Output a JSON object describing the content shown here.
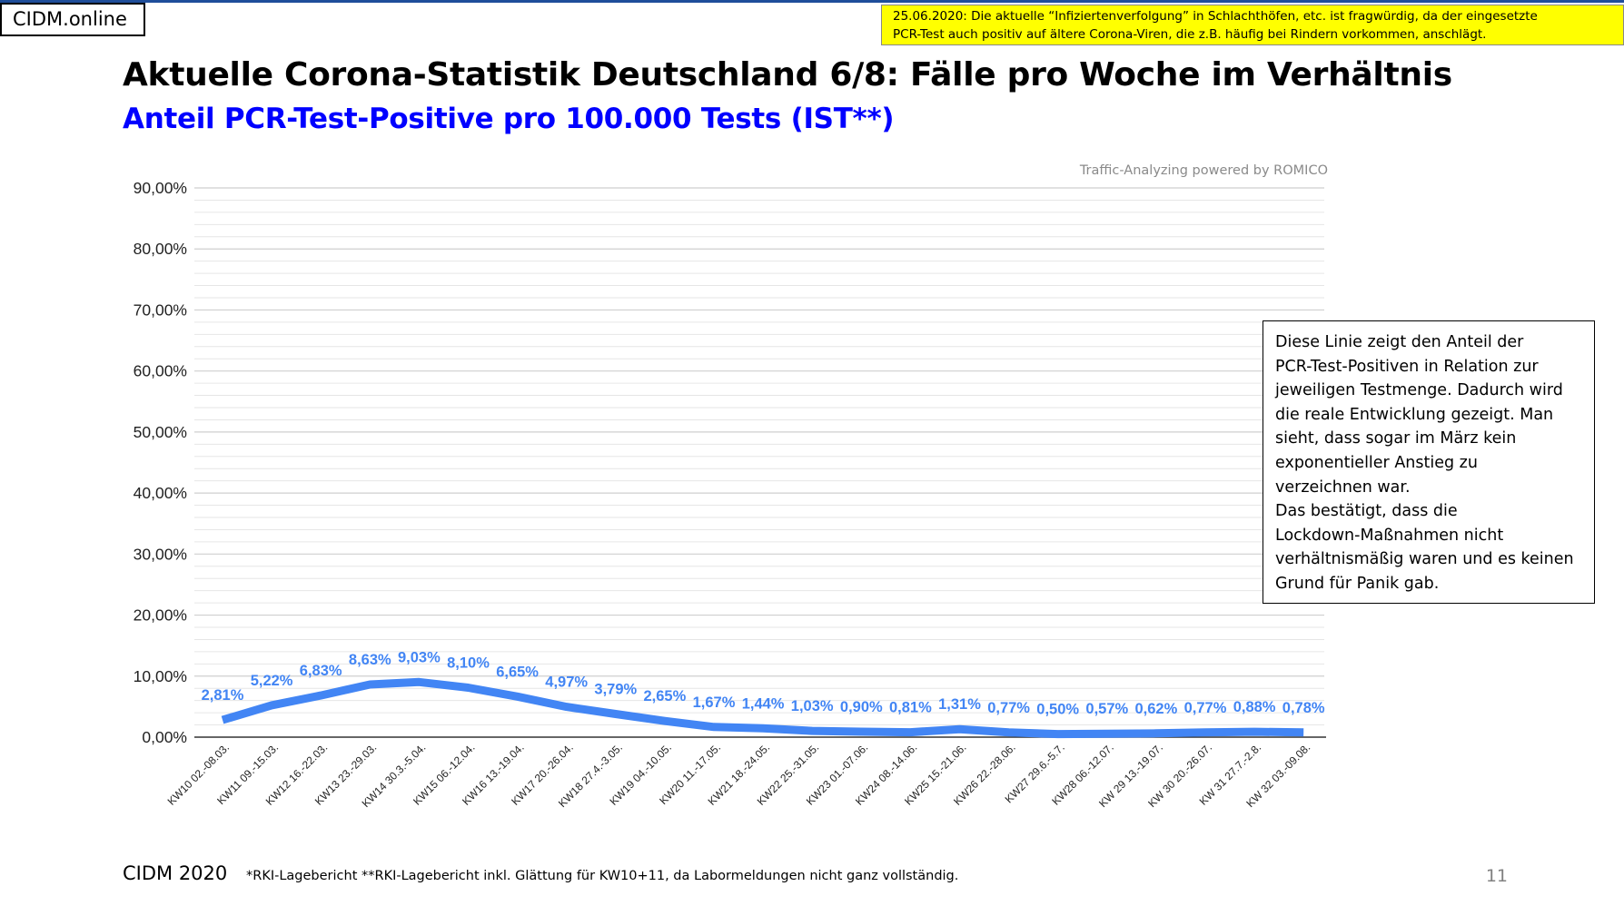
{
  "header": {
    "brand": "CIDM.online",
    "notice_line1": "25.06.2020: Die aktuelle “Infiziertenverfolgung” in Schlachthöfen, etc. ist fragwürdig, da der eingesetzte",
    "notice_line2": "PCR-Test auch positiv auf ältere Corona-Viren, die z.B. häufig bei Rindern vorkommen, anschlägt."
  },
  "title": "Aktuelle Corona-Statistik Deutschland 6/8: Fälle pro Woche im Verhältnis",
  "subtitle": "Anteil PCR-Test-Positive pro 100.000 Tests (IST**)",
  "watermark": "Traffic-Analyzing powered by ROMICO",
  "annotation": {
    "lines": [
      "Diese Linie zeigt den Anteil der",
      "PCR-Test-Positiven in Relation zur",
      "jeweiligen Testmenge. Dadurch wird",
      "die reale Entwicklung gezeigt. Man",
      "sieht, dass sogar im März kein",
      "exponentieller Anstieg zu",
      "verzeichnen war.",
      "Das bestätigt, dass die",
      "Lockdown-Maßnahmen nicht",
      "verhältnismäßig waren und es keinen",
      "Grund für Panik gab."
    ]
  },
  "footer": {
    "brand": "CIDM 2020",
    "note": "*RKI-Lagebericht   **RKI-Lagebericht inkl. Glättung für KW10+11, da Labormeldungen nicht ganz vollständig.",
    "page_number": "11"
  },
  "chart_data": {
    "type": "line",
    "title": "",
    "xlabel": "",
    "ylabel": "",
    "ylim": [
      0,
      90
    ],
    "yticks": [
      "0,00%",
      "10,00%",
      "20,00%",
      "30,00%",
      "40,00%",
      "50,00%",
      "60,00%",
      "70,00%",
      "80,00%",
      "90,00%"
    ],
    "grid": true,
    "legend": "none",
    "line_color": "#4285f4",
    "label_color": "#4285f4",
    "categories": [
      "KW10 02.-08.03.",
      "KW11 09.-15.03.",
      "KW12 16.-22.03.",
      "KW13 23.-29.03.",
      "KW14 30.3.-5.04.",
      "KW15 06.-12.04.",
      "KW16 13.-19.04.",
      "KW17 20.-26.04.",
      "KW18 27.4.-3.05.",
      "KW19 04.-10.05.",
      "KW20 11.-17.05.",
      "KW21 18.-24.05.",
      "KW22 25.-31.05.",
      "KW23 01.-07.06.",
      "KW24 08.-14.06.",
      "KW25 15.-21.06.",
      "KW26 22.-28.06.",
      "KW27 29.6.-5.7.",
      "KW28 06.-12.07.",
      "KW 29 13.-19.07.",
      "KW 30 20.-26.07.",
      "KW 31 27.7.-2.8.",
      "KW 32 03.-09.08."
    ],
    "values": [
      2.81,
      5.22,
      6.83,
      8.63,
      9.03,
      8.1,
      6.65,
      4.97,
      3.79,
      2.65,
      1.67,
      1.44,
      1.03,
      0.9,
      0.81,
      1.31,
      0.77,
      0.5,
      0.57,
      0.62,
      0.77,
      0.88,
      0.78
    ],
    "data_labels": [
      "2,81%",
      "5,22%",
      "6,83%",
      "8,63%",
      "9,03%",
      "8,10%",
      "6,65%",
      "4,97%",
      "3,79%",
      "2,65%",
      "1,67%",
      "1,44%",
      "1,03%",
      "0,90%",
      "0,81%",
      "1,31%",
      "0,77%",
      "0,50%",
      "0,57%",
      "0,62%",
      "0,77%",
      "0,88%",
      "0,78%"
    ]
  }
}
